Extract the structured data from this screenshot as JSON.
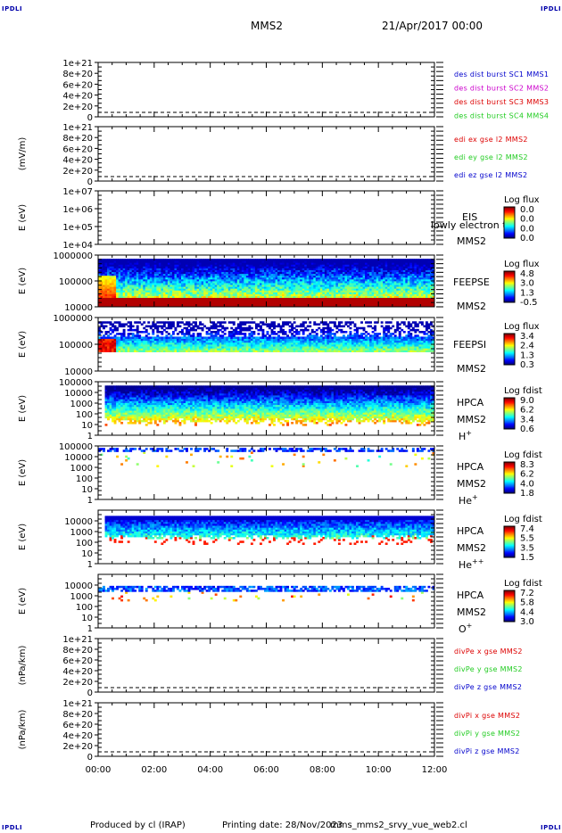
{
  "header": {
    "corner_labels": [
      "IPDLI",
      "IPDLI",
      "IPDLI",
      "IPDLI"
    ],
    "spacecraft": "MMS2",
    "date": "21/Apr/2017 00:00"
  },
  "footer": {
    "produced": "Produced by cl (IRAP)",
    "printing": "Printing date: 28/Nov/2023",
    "file": "mms_mms2_srvy_vue_web2.cl"
  },
  "x_axis": {
    "range_hours": [
      0,
      12
    ],
    "tick_labels": [
      "00:00",
      "02:00",
      "04:00",
      "06:00",
      "08:00",
      "10:00",
      "12:00"
    ]
  },
  "colors": {
    "red": "#dd0000",
    "green": "#22cc22",
    "blue": "#0000cc",
    "magenta": "#cc00cc",
    "black": "#000000"
  },
  "chart_data": [
    {
      "type": "line",
      "ylabel": "",
      "ylim": [
        0,
        1e+21
      ],
      "yscale": "linear",
      "yticks": [
        "1e+21",
        "8e+20",
        "6e+20",
        "4e+20",
        "2e+20",
        "0"
      ],
      "legend": [
        {
          "text": "des dist burst SC1 MMS1",
          "color": "#0000cc"
        },
        {
          "text": "des dist burst SC2 MMS2",
          "color": "#cc00cc"
        },
        {
          "text": "des dist burst SC3 MMS3",
          "color": "#dd0000"
        },
        {
          "text": "des dist burst SC4 MMS4",
          "color": "#22cc22"
        }
      ],
      "dashed_zero": true
    },
    {
      "type": "line",
      "ylabel": "(mV/m)",
      "ylim": [
        0,
        1e+21
      ],
      "yscale": "linear",
      "yticks": [
        "1e+21",
        "8e+20",
        "6e+20",
        "4e+20",
        "2e+20",
        "0"
      ],
      "legend": [
        {
          "text": "edi ex gse l2 MMS2",
          "color": "#dd0000"
        },
        {
          "text": "edi ey gse l2 MMS2",
          "color": "#22cc22"
        },
        {
          "text": "edi ez gse l2 MMS2",
          "color": "#0000cc"
        }
      ],
      "dashed_zero": true
    },
    {
      "type": "heatmap",
      "ylabel": "E (eV)",
      "ylim": [
        10000,
        10000000
      ],
      "yscale": "log",
      "yticks": [
        "1e+07",
        "1e+06",
        "1e+05",
        "1e+04"
      ],
      "labels": [
        "EIS",
        "lowly electron to",
        "MMS2"
      ],
      "colorbar": {
        "title": "Log flux",
        "ticks": [
          "0.0",
          "0.0",
          "0.0",
          "0.0"
        ]
      },
      "fill": "none"
    },
    {
      "type": "heatmap",
      "ylabel": "E (eV)",
      "ylim": [
        10000,
        1000000
      ],
      "yscale": "log",
      "yticks": [
        "1000000",
        "100000",
        "10000"
      ],
      "labels": [
        "FEEPSE",
        "MMS2"
      ],
      "colorbar": {
        "title": "Log flux",
        "ticks": [
          "4.8",
          "3.0",
          "1.3",
          "-0.5"
        ]
      },
      "fill": "feepse"
    },
    {
      "type": "heatmap",
      "ylabel": "E (eV)",
      "ylim": [
        10000,
        1000000
      ],
      "yscale": "log",
      "yticks": [
        "1000000",
        "100000",
        "10000"
      ],
      "labels": [
        "FEEPSI",
        "MMS2"
      ],
      "colorbar": {
        "title": "Log flux",
        "ticks": [
          "3.4",
          "2.4",
          "1.3",
          "0.3"
        ]
      },
      "fill": "feepsi"
    },
    {
      "type": "heatmap",
      "ylabel": "E (eV)",
      "ylim": [
        1,
        100000
      ],
      "yscale": "log",
      "yticks": [
        "100000",
        "10000",
        "1000",
        "100",
        "10",
        "1"
      ],
      "labels": [
        "HPCA",
        "MMS2"
      ],
      "species": "H",
      "species_sup": "+",
      "colorbar": {
        "title": "Log fdist",
        "ticks": [
          "9.0",
          "6.2",
          "3.4",
          "0.6"
        ]
      },
      "fill": "hplus"
    },
    {
      "type": "heatmap",
      "ylabel": "E (eV)",
      "ylim": [
        1,
        100000
      ],
      "yscale": "log",
      "yticks": [
        "100000",
        "10000",
        "1000",
        "100",
        "10",
        "1"
      ],
      "labels": [
        "HPCA",
        "MMS2"
      ],
      "species": "He",
      "species_sup": "+",
      "colorbar": {
        "title": "Log fdist",
        "ticks": [
          "8.3",
          "6.2",
          "4.0",
          "1.8"
        ]
      },
      "fill": "heplus"
    },
    {
      "type": "heatmap",
      "ylabel": "E (eV)",
      "ylim": [
        1,
        100000
      ],
      "yscale": "log",
      "yticks": [
        "10000",
        "1000",
        "100",
        "10",
        "1"
      ],
      "labels": [
        "HPCA",
        "MMS2"
      ],
      "species": "He",
      "species_sup": "++",
      "colorbar": {
        "title": "Log fdist",
        "ticks": [
          "7.4",
          "5.5",
          "3.5",
          "1.5"
        ]
      },
      "fill": "heplusplus"
    },
    {
      "type": "heatmap",
      "ylabel": "E (eV)",
      "ylim": [
        1,
        100000
      ],
      "yscale": "log",
      "yticks": [
        "10000",
        "1000",
        "100",
        "10",
        "1"
      ],
      "labels": [
        "HPCA",
        "MMS2"
      ],
      "species": "O",
      "species_sup": "+",
      "colorbar": {
        "title": "Log fdist",
        "ticks": [
          "7.2",
          "5.8",
          "4.4",
          "3.0"
        ]
      },
      "fill": "oplus"
    },
    {
      "type": "line",
      "ylabel": "(nPa/km)",
      "ylim": [
        0,
        1e+21
      ],
      "yscale": "linear",
      "yticks": [
        "1e+21",
        "8e+20",
        "6e+20",
        "4e+20",
        "2e+20",
        "0"
      ],
      "legend": [
        {
          "text": "divPe x gse MMS2",
          "color": "#dd0000"
        },
        {
          "text": "divPe y gse MMS2",
          "color": "#22cc22"
        },
        {
          "text": "divPe z gse MMS2",
          "color": "#0000cc"
        }
      ],
      "dashed_zero": true
    },
    {
      "type": "line",
      "ylabel": "(nPa/km)",
      "ylim": [
        0,
        1e+21
      ],
      "yscale": "linear",
      "yticks": [
        "1e+21",
        "8e+20",
        "6e+20",
        "4e+20",
        "2e+20",
        "0"
      ],
      "legend": [
        {
          "text": "divPi x gse MMS2",
          "color": "#dd0000"
        },
        {
          "text": "divPi y gse MMS2",
          "color": "#22cc22"
        },
        {
          "text": "divPi z gse MMS2",
          "color": "#0000cc"
        }
      ],
      "dashed_zero": true
    }
  ]
}
